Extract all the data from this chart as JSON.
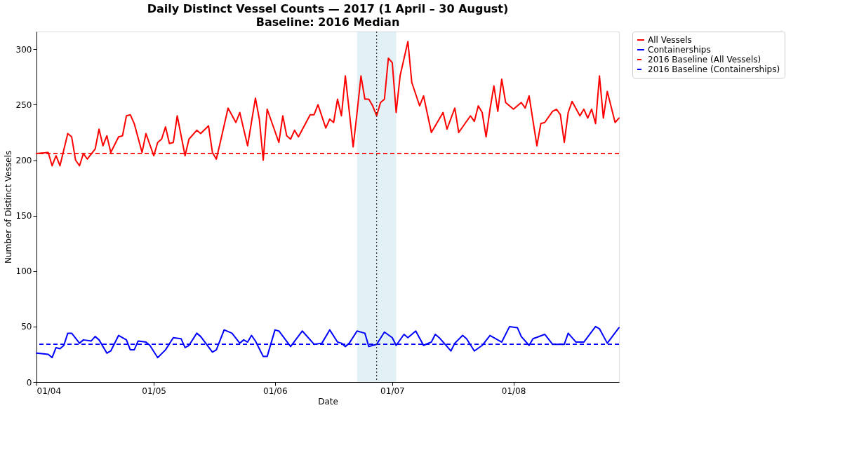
{
  "chart_data": {
    "type": "line",
    "title": "Daily Distinct Vessel Counts — 2017 (1 April – 30 August)",
    "subtitle": "Baseline: 2016 Median",
    "xlabel": "Date",
    "ylabel": "Number of Distinct Vessels",
    "xlim": [
      "2017-04-01",
      "2017-08-28"
    ],
    "ylim": [
      0,
      316
    ],
    "xticks": [
      {
        "value": "2017-04-01",
        "label": "01/04"
      },
      {
        "value": "2017-05-01",
        "label": "01/05"
      },
      {
        "value": "2017-06-01",
        "label": "01/06"
      },
      {
        "value": "2017-07-01",
        "label": "01/07"
      },
      {
        "value": "2017-08-01",
        "label": "01/08"
      }
    ],
    "yticks": [
      0,
      50,
      100,
      150,
      200,
      250,
      300
    ],
    "grid": false,
    "legend": "right",
    "line_style": "solid",
    "series": [
      {
        "name": "All Vessels",
        "color": "#ff0000",
        "x": [
          "2017-04-01",
          "2017-04-04",
          "2017-04-05",
          "2017-04-06",
          "2017-04-07",
          "2017-04-09",
          "2017-04-10",
          "2017-04-11",
          "2017-04-12",
          "2017-04-13",
          "2017-04-14",
          "2017-04-16",
          "2017-04-17",
          "2017-04-18",
          "2017-04-19",
          "2017-04-20",
          "2017-04-22",
          "2017-04-23",
          "2017-04-24",
          "2017-04-25",
          "2017-04-26",
          "2017-04-28",
          "2017-04-29",
          "2017-05-01",
          "2017-05-02",
          "2017-05-03",
          "2017-05-04",
          "2017-05-05",
          "2017-05-06",
          "2017-05-07",
          "2017-05-09",
          "2017-05-10",
          "2017-05-12",
          "2017-05-13",
          "2017-05-15",
          "2017-05-16",
          "2017-05-17",
          "2017-05-18",
          "2017-05-20",
          "2017-05-22",
          "2017-05-23",
          "2017-05-25",
          "2017-05-27",
          "2017-05-28",
          "2017-05-29",
          "2017-05-30",
          "2017-06-02",
          "2017-06-03",
          "2017-06-04",
          "2017-06-05",
          "2017-06-06",
          "2017-06-07",
          "2017-06-10",
          "2017-06-11",
          "2017-06-12",
          "2017-06-14",
          "2017-06-15",
          "2017-06-16",
          "2017-06-17",
          "2017-06-18",
          "2017-06-19",
          "2017-06-21",
          "2017-06-22",
          "2017-06-23",
          "2017-06-24",
          "2017-06-25",
          "2017-06-26",
          "2017-06-27",
          "2017-06-28",
          "2017-06-29",
          "2017-06-30",
          "2017-07-01",
          "2017-07-02",
          "2017-07-03",
          "2017-07-05",
          "2017-07-06",
          "2017-07-08",
          "2017-07-09",
          "2017-07-11",
          "2017-07-14",
          "2017-07-15",
          "2017-07-17",
          "2017-07-18",
          "2017-07-21",
          "2017-07-22",
          "2017-07-23",
          "2017-07-24",
          "2017-07-25",
          "2017-07-26",
          "2017-07-27",
          "2017-07-28",
          "2017-07-29",
          "2017-07-30",
          "2017-08-01",
          "2017-08-03",
          "2017-08-04",
          "2017-08-05",
          "2017-08-07",
          "2017-08-08",
          "2017-08-09",
          "2017-08-11",
          "2017-08-12",
          "2017-08-13",
          "2017-08-14",
          "2017-08-15",
          "2017-08-16",
          "2017-08-18",
          "2017-08-19",
          "2017-08-20",
          "2017-08-21",
          "2017-08-22",
          "2017-08-23",
          "2017-08-24",
          "2017-08-25",
          "2017-08-27",
          "2017-08-28"
        ],
        "values": [
          206,
          207,
          195,
          204,
          195,
          224,
          221,
          200,
          195,
          206,
          201,
          210,
          228,
          213,
          222,
          207,
          221,
          222,
          240,
          241,
          233,
          207,
          224,
          204,
          216,
          219,
          230,
          215,
          216,
          240,
          204,
          219,
          227,
          224,
          231,
          207,
          201,
          216,
          247,
          234,
          243,
          213,
          256,
          237,
          200,
          246,
          216,
          240,
          222,
          219,
          227,
          221,
          241,
          241,
          250,
          229,
          237,
          234,
          255,
          240,
          276,
          212,
          243,
          276,
          255,
          255,
          249,
          240,
          252,
          255,
          292,
          288,
          243,
          276,
          307,
          270,
          249,
          258,
          225,
          243,
          228,
          247,
          225,
          240,
          235,
          249,
          243,
          221,
          246,
          267,
          244,
          273,
          252,
          246,
          252,
          247,
          258,
          213,
          233,
          234,
          244,
          246,
          241,
          216,
          243,
          253,
          240,
          246,
          238,
          246,
          233,
          276,
          238,
          262,
          234,
          238
        ]
      },
      {
        "name": "Containerships",
        "color": "#0000ff",
        "x": [
          "2017-04-01",
          "2017-04-04",
          "2017-04-05",
          "2017-04-06",
          "2017-04-07",
          "2017-04-08",
          "2017-04-09",
          "2017-04-10",
          "2017-04-12",
          "2017-04-13",
          "2017-04-15",
          "2017-04-16",
          "2017-04-17",
          "2017-04-19",
          "2017-04-20",
          "2017-04-22",
          "2017-04-24",
          "2017-04-25",
          "2017-04-26",
          "2017-04-27",
          "2017-04-29",
          "2017-04-30",
          "2017-05-02",
          "2017-05-04",
          "2017-05-06",
          "2017-05-08",
          "2017-05-09",
          "2017-05-10",
          "2017-05-12",
          "2017-05-13",
          "2017-05-16",
          "2017-05-17",
          "2017-05-19",
          "2017-05-21",
          "2017-05-23",
          "2017-05-24",
          "2017-05-25",
          "2017-05-26",
          "2017-05-27",
          "2017-05-29",
          "2017-05-30",
          "2017-06-01",
          "2017-06-02",
          "2017-06-05",
          "2017-06-08",
          "2017-06-11",
          "2017-06-13",
          "2017-06-15",
          "2017-06-17",
          "2017-06-18",
          "2017-06-19",
          "2017-06-20",
          "2017-06-22",
          "2017-06-24",
          "2017-06-25",
          "2017-06-27",
          "2017-06-29",
          "2017-07-01",
          "2017-07-02",
          "2017-07-04",
          "2017-07-05",
          "2017-07-07",
          "2017-07-09",
          "2017-07-11",
          "2017-07-12",
          "2017-07-13",
          "2017-07-16",
          "2017-07-17",
          "2017-07-19",
          "2017-07-20",
          "2017-07-22",
          "2017-07-24",
          "2017-07-26",
          "2017-07-29",
          "2017-07-31",
          "2017-08-02",
          "2017-08-03",
          "2017-08-05",
          "2017-08-06",
          "2017-08-09",
          "2017-08-11",
          "2017-08-14",
          "2017-08-15",
          "2017-08-17",
          "2017-08-19",
          "2017-08-22",
          "2017-08-23",
          "2017-08-25",
          "2017-08-28"
        ],
        "values": [
          26,
          25,
          22,
          31,
          30,
          33,
          44,
          44,
          35,
          38,
          37,
          41,
          38,
          26,
          28,
          42,
          38,
          29,
          29,
          37,
          36,
          33,
          22,
          29,
          40,
          39,
          31,
          33,
          44,
          41,
          27,
          29,
          47,
          44,
          35,
          38,
          36,
          42,
          37,
          23,
          23,
          47,
          46,
          32,
          46,
          34,
          35,
          47,
          36,
          35,
          32,
          35,
          46,
          44,
          32,
          34,
          45,
          40,
          33,
          43,
          40,
          46,
          33,
          36,
          43,
          40,
          28,
          35,
          42,
          39,
          28,
          33,
          42,
          36,
          50,
          49,
          41,
          33,
          39,
          43,
          34,
          34,
          44,
          36,
          36,
          50,
          48,
          35,
          49
        ]
      }
    ],
    "ref_lines": [
      {
        "axis": "y",
        "value": 206,
        "label": "2016 Baseline (All Vessels)",
        "color": "#ff0000",
        "line_style": "dashed"
      },
      {
        "axis": "y",
        "value": 34,
        "label": "2016 Baseline (Containerships)",
        "color": "#0000ff",
        "line_style": "dashed"
      },
      {
        "axis": "x",
        "value": "2017-06-27",
        "color": "#333333",
        "line_style": "dotted"
      }
    ],
    "bands": [
      {
        "axis": "x",
        "from": "2017-06-22",
        "to": "2017-07-02",
        "color": "#add8e6"
      }
    ]
  }
}
